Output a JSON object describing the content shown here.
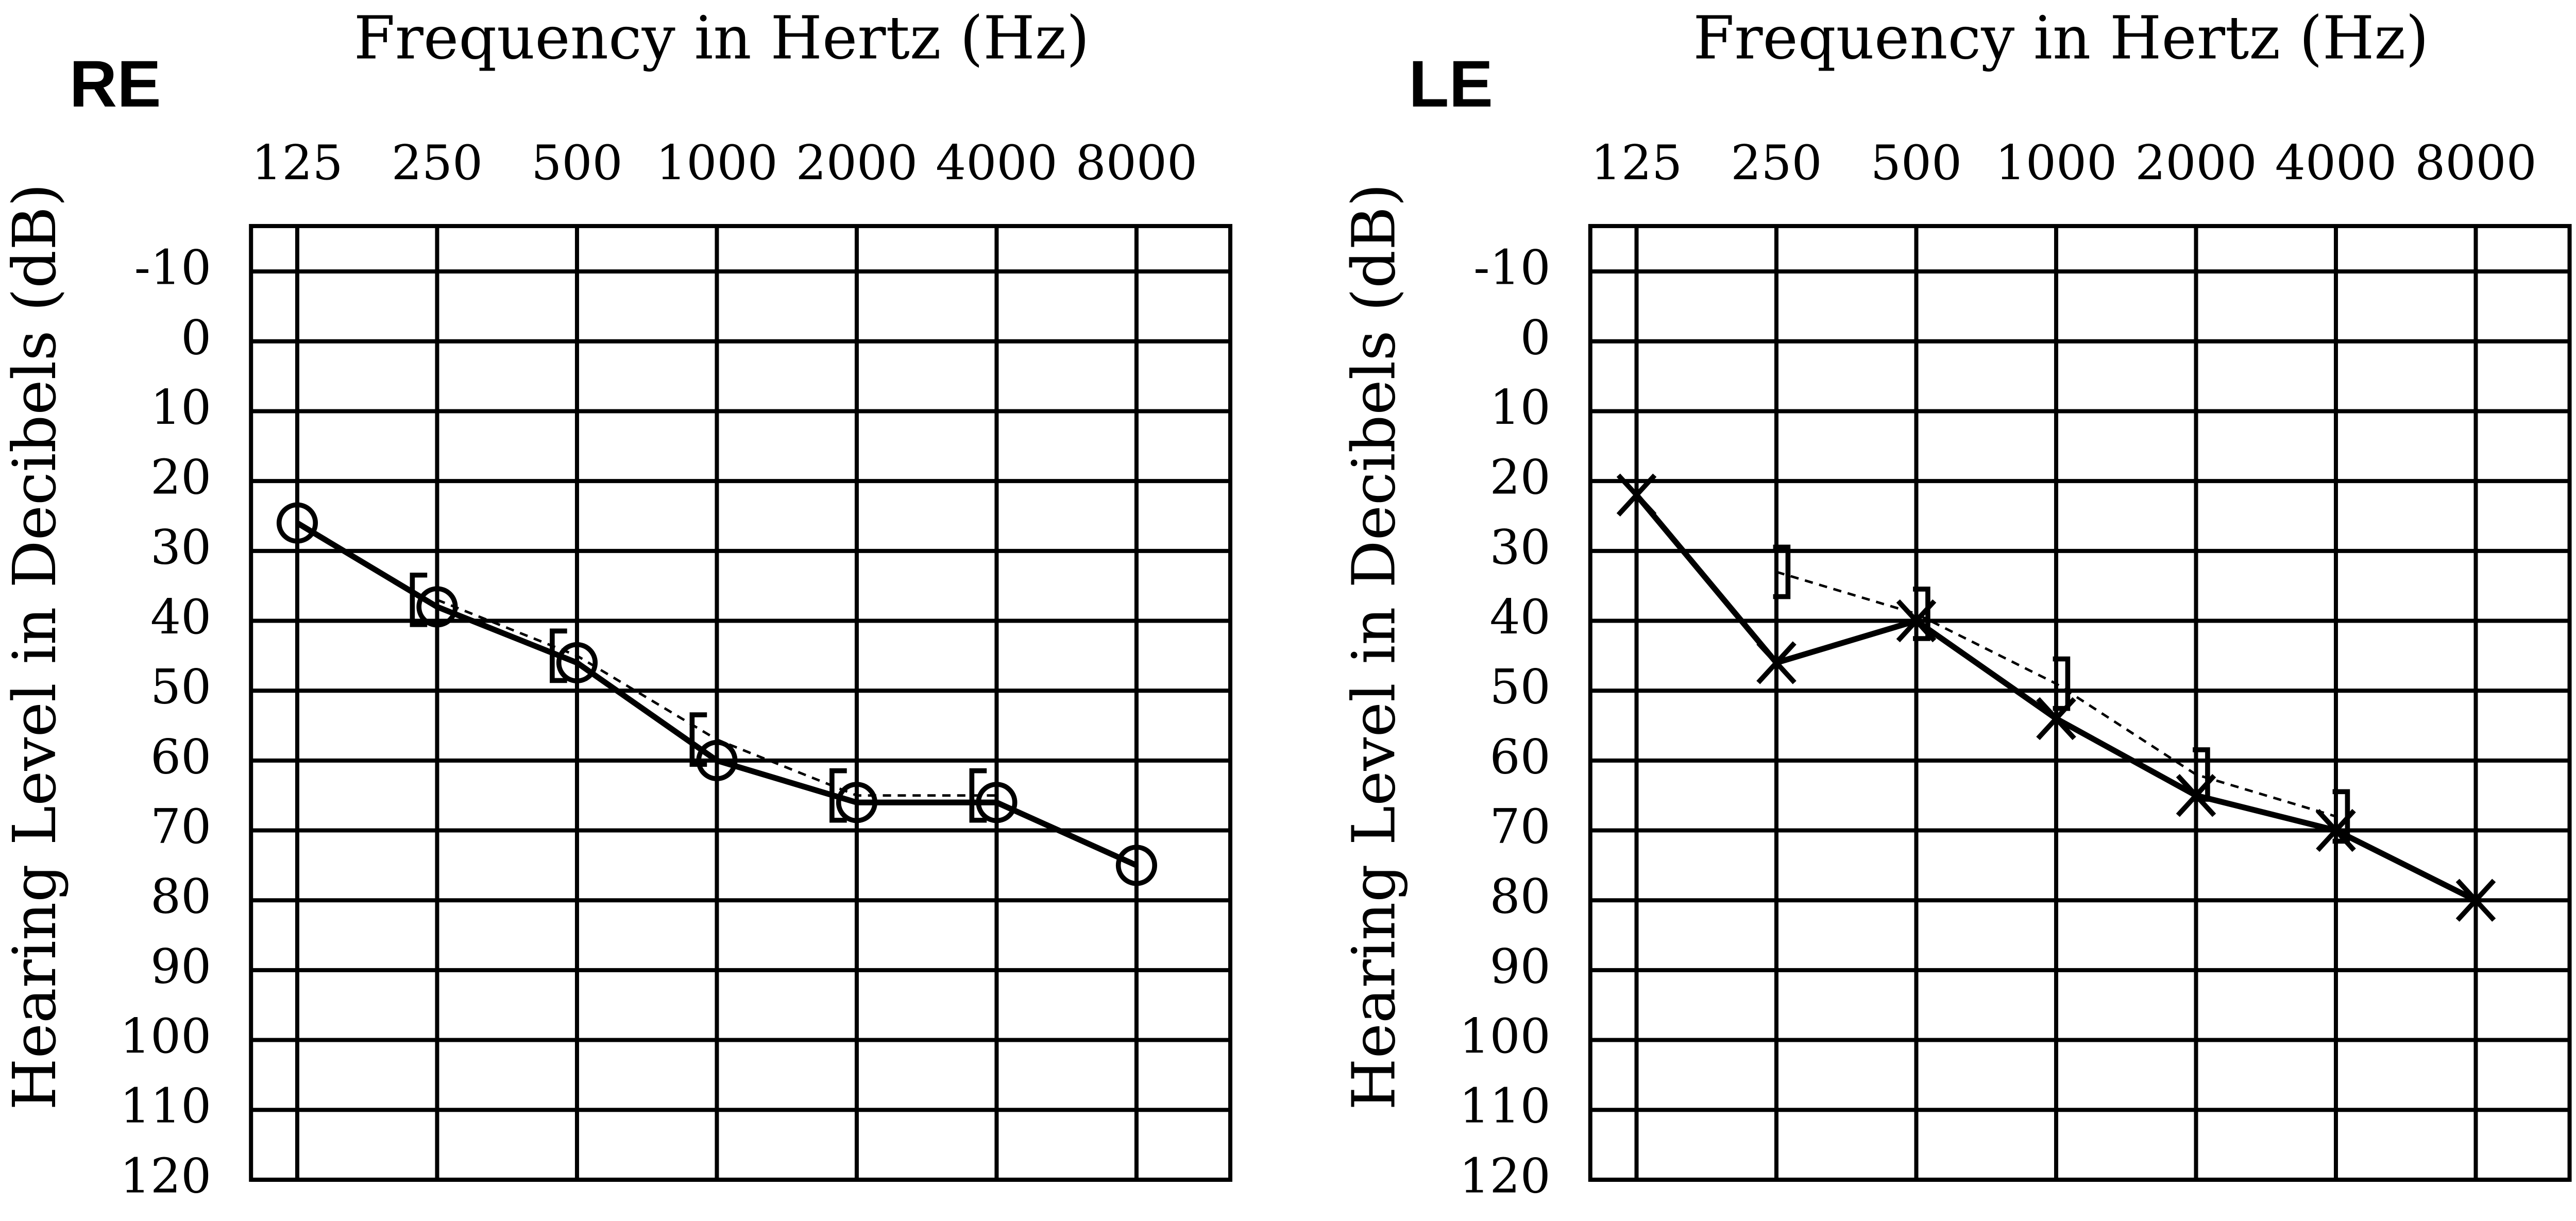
{
  "chart_data": [
    {
      "type": "line",
      "ear_label": "RE",
      "xlabel": "Frequency in Hertz (Hz)",
      "ylabel": "Hearing Level in Decibels (dB)",
      "categories": [
        "125",
        "250",
        "500",
        "1000",
        "2000",
        "4000",
        "8000"
      ],
      "ylim": [
        -16.5,
        120
      ],
      "y_inverted": true,
      "yticks": [
        -10,
        0,
        10,
        20,
        30,
        40,
        50,
        60,
        70,
        80,
        90,
        100,
        110,
        120
      ],
      "grid": true,
      "series": [
        {
          "color": "#000000",
          "marker": "circle",
          "line": "solid",
          "values": [
            26,
            38,
            46,
            60,
            66,
            66,
            75
          ]
        },
        {
          "color": "#000000",
          "marker": "bracket-left",
          "line": "dashed",
          "values": [
            null,
            37,
            45,
            57,
            65,
            65,
            null
          ]
        }
      ]
    },
    {
      "type": "line",
      "ear_label": "LE",
      "xlabel": "Frequency in Hertz (Hz)",
      "ylabel": "Hearing Level in Decibels (dB)",
      "categories": [
        "125",
        "250",
        "500",
        "1000",
        "2000",
        "4000",
        "8000"
      ],
      "ylim": [
        -16.5,
        120
      ],
      "y_inverted": true,
      "yticks": [
        -10,
        0,
        10,
        20,
        30,
        40,
        50,
        60,
        70,
        80,
        90,
        100,
        110,
        120
      ],
      "grid": true,
      "series": [
        {
          "color": "#000000",
          "marker": "x",
          "line": "solid",
          "values": [
            22,
            46,
            40,
            54,
            65,
            70,
            80
          ]
        },
        {
          "color": "#000000",
          "marker": "bracket-right",
          "line": "dashed",
          "values": [
            null,
            33,
            39,
            49,
            62,
            68,
            null
          ]
        }
      ]
    }
  ]
}
